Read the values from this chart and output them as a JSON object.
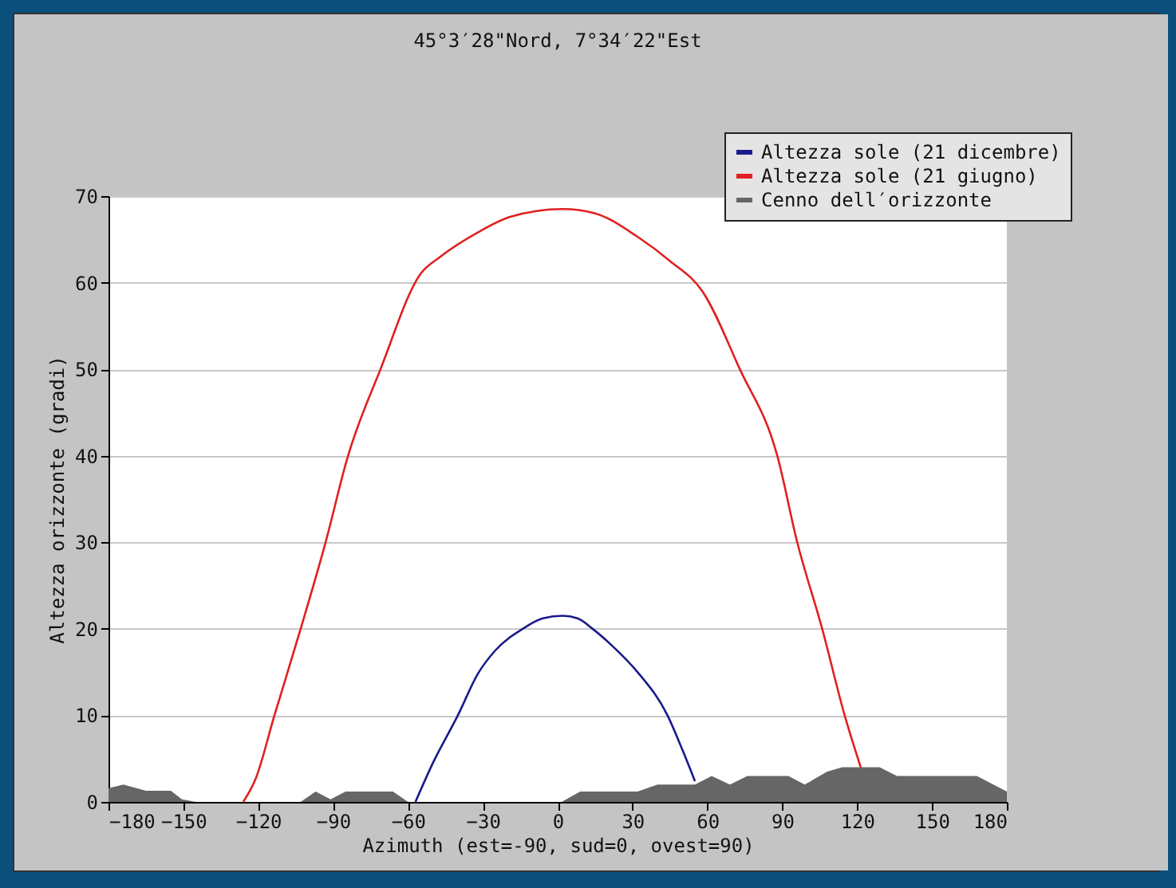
{
  "chart_data": {
    "type": "line",
    "title": "45°3′28\"Nord, 7°34′22\"Est",
    "xlabel": "Azimuth (est=-90, sud=0, ovest=90)",
    "ylabel": "Altezza orizzonte (gradi)",
    "xlim": [
      -180,
      180
    ],
    "ylim": [
      0,
      70
    ],
    "xticks": [
      -180,
      -150,
      -120,
      -90,
      -60,
      -30,
      0,
      30,
      60,
      90,
      120,
      150,
      180
    ],
    "yticks": [
      0,
      10,
      20,
      30,
      40,
      50,
      60,
      70
    ],
    "grid": "y",
    "legend": "top right",
    "series": [
      {
        "name": "Altezza sole (21 dicembre)",
        "color": "#1a1a8c",
        "x": [
          -57,
          -50,
          -40,
          -32,
          -25,
          -14,
          -6,
          2,
          8,
          14,
          22,
          32,
          44,
          50,
          55
        ],
        "values": [
          0,
          4.5,
          10,
          14.8,
          17.5,
          20,
          21.2,
          21.5,
          21.2,
          20,
          18,
          15,
          10,
          6,
          2.4
        ]
      },
      {
        "name": "Altezza sole (21 giugno)",
        "color": "#e02020",
        "x": [
          -126,
          -121,
          -113.5,
          -103,
          -93,
          -84,
          -71,
          -55,
          -47,
          -32,
          -19,
          2,
          15,
          32,
          45,
          58,
          73,
          88,
          96,
          106,
          115,
          122
        ],
        "values": [
          0,
          2.7,
          10,
          20,
          30,
          40,
          50,
          61,
          63,
          65.8,
          67.6,
          68.5,
          68,
          65.3,
          62.5,
          59,
          50,
          40,
          30,
          20,
          10,
          3.5
        ]
      },
      {
        "name": "Cenno dell′orizzonte",
        "color": "#666666",
        "type": "area",
        "x": [
          -180,
          -174,
          -165,
          -155,
          -150.6,
          -145,
          -103,
          -97,
          -91,
          -85,
          -66,
          -60,
          1.6,
          9,
          32,
          40,
          55,
          61.7,
          69,
          76,
          92.5,
          99,
          108,
          114,
          129,
          136,
          168,
          178,
          180
        ],
        "values": [
          1.6,
          2,
          1.3,
          1.3,
          0.3,
          0,
          0,
          1.2,
          0.3,
          1.2,
          1.2,
          0,
          0,
          1.2,
          1.2,
          2,
          2,
          3,
          2,
          3,
          3,
          2,
          3.5,
          4,
          4,
          3,
          3,
          1.5,
          1.2
        ]
      }
    ]
  }
}
